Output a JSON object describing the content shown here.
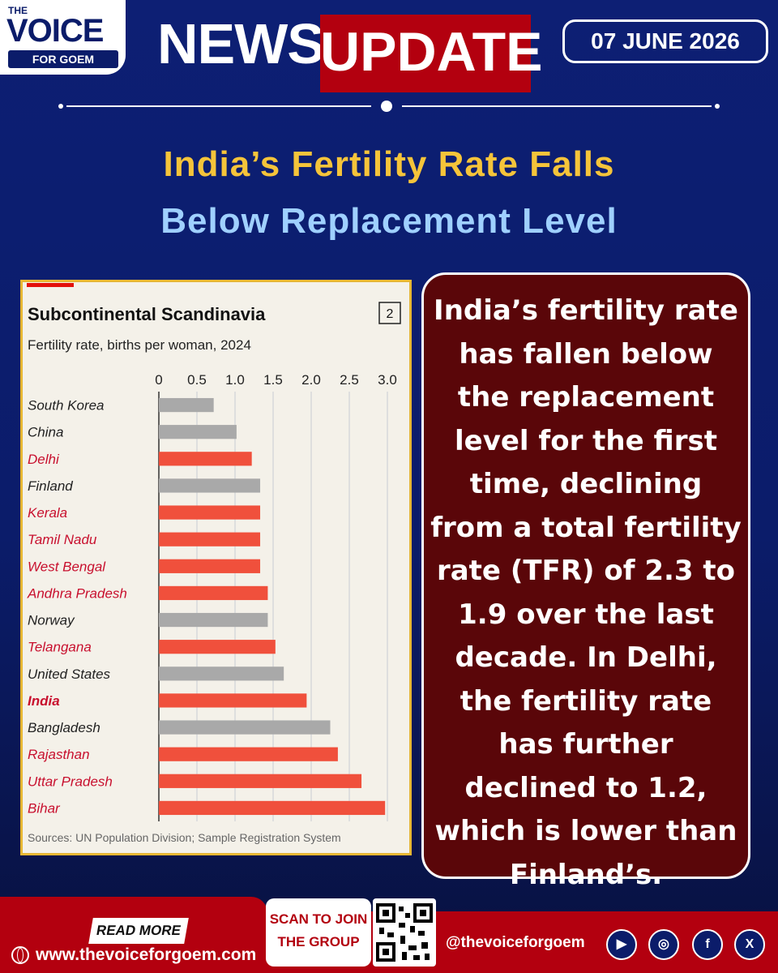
{
  "header": {
    "logo_the": "THE",
    "logo_voice": "VOICE",
    "logo_sub": "FOR GOEM",
    "news": "NEWS",
    "update": "UPDATE",
    "date": "07 JUNE 2026"
  },
  "headline": {
    "line1": "India’s Fertility Rate Falls",
    "line2": "Below Replacement Level"
  },
  "colors": {
    "background": "#0d1f74",
    "accent_red": "#b3000f",
    "title_yellow": "#f5c43a",
    "title_blue": "#9fd0ff",
    "bar_red": "#f0503c",
    "bar_grey": "#a9a9a9",
    "textbox_bg": "#5a0609"
  },
  "chart_data": {
    "type": "bar",
    "orientation": "horizontal",
    "title": "Subcontinental Scandinavia",
    "subtitle": "Fertility rate, births per woman, 2024",
    "chart_number": "2",
    "xlim": [
      0,
      3.0
    ],
    "xticks": [
      "0",
      "0.5",
      "1.0",
      "1.5",
      "2.0",
      "2.5",
      "3.0"
    ],
    "grid": true,
    "source": "Sources: UN Population Division; Sample Registration System",
    "categories": [
      "South Korea",
      "China",
      "Delhi",
      "Finland",
      "Kerala",
      "Tamil Nadu",
      "West Bengal",
      "Andhra Pradesh",
      "Norway",
      "Telangana",
      "United States",
      "India",
      "Bangladesh",
      "Rajasthan",
      "Uttar Pradesh",
      "Bihar"
    ],
    "values": [
      0.72,
      1.02,
      1.22,
      1.33,
      1.33,
      1.33,
      1.33,
      1.43,
      1.43,
      1.53,
      1.64,
      1.94,
      2.25,
      2.35,
      2.66,
      2.97
    ],
    "indian": [
      false,
      false,
      true,
      false,
      true,
      true,
      true,
      true,
      false,
      true,
      false,
      true,
      false,
      true,
      true,
      true
    ],
    "bold": [
      false,
      false,
      false,
      false,
      false,
      false,
      false,
      false,
      false,
      false,
      false,
      true,
      false,
      false,
      false,
      false
    ]
  },
  "body_text": "India’s fertility rate has fallen below the replacement level for the first time, declining from a total fertility rate (TFR) of 2.3 to 1.9 over the last decade. In Delhi, the fertility rate has further declined to 1.2, which is lower than Finland’s.",
  "footer": {
    "read_more": "READ MORE",
    "website": "www.thevoiceforgoem.com",
    "scan_line1": "SCAN TO JOIN",
    "scan_line2": "THE GROUP",
    "handle": "@thevoiceforgoem",
    "social_icons": [
      "youtube-icon",
      "instagram-icon",
      "facebook-icon",
      "x-icon"
    ]
  }
}
